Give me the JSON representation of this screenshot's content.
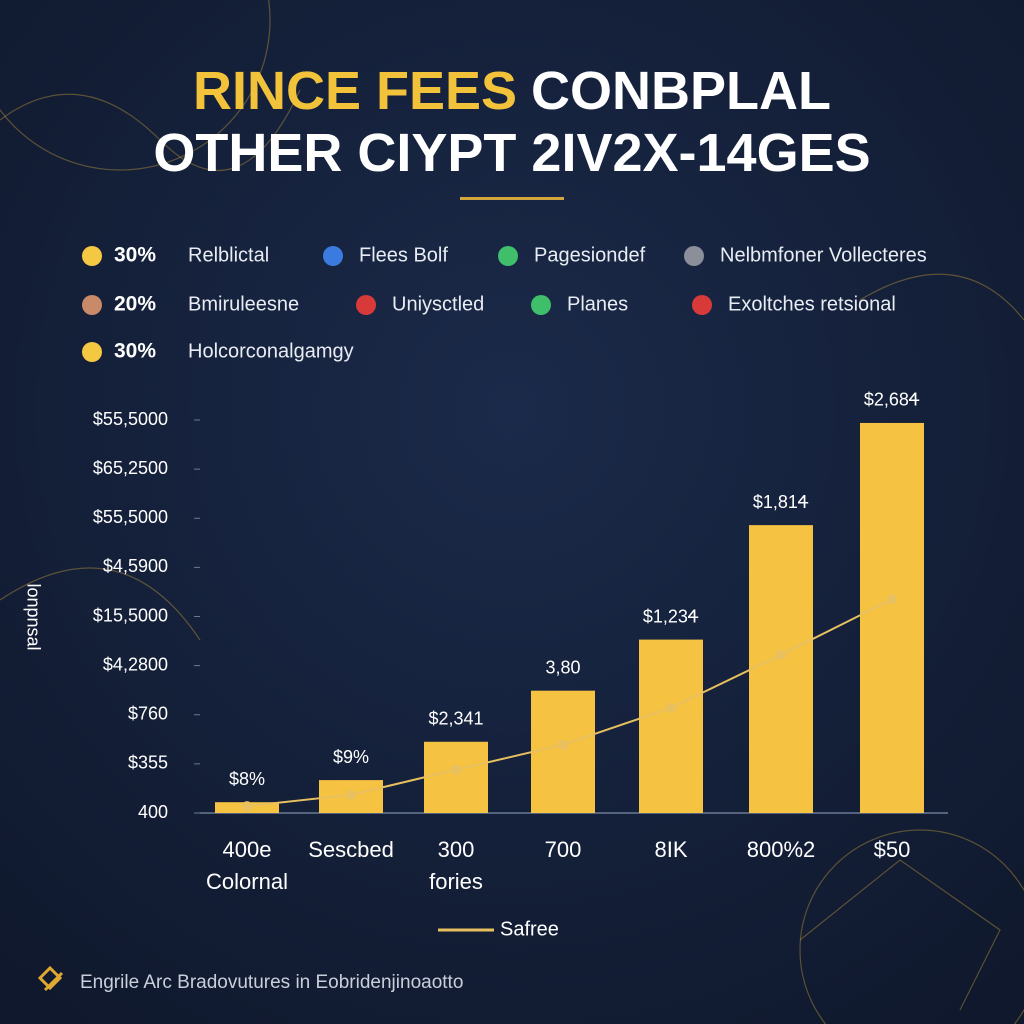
{
  "chart_data": {
    "type": "bar",
    "title_lines": [
      [
        {
          "text": "RINCE FEES",
          "color": "#f2c23a"
        },
        {
          "text": "CONBPLAL",
          "color": "#ffffff"
        }
      ],
      [
        {
          "text": "OTHER CIYPT 2IV2X-14GES",
          "color": "#ffffff"
        }
      ]
    ],
    "legend": [
      {
        "percent": "30%",
        "label": "Relblictal",
        "color": "#f5c842"
      },
      {
        "label": "Flees Bolf",
        "color": "#3b7be0"
      },
      {
        "label": "Pagesiondef",
        "color": "#3fbf6a"
      },
      {
        "label": "Nelbmfoner Vollecteres",
        "color": "#8a8f99"
      },
      {
        "percent": "20%",
        "label": "Bmiruleesne",
        "color": "#c98a6a"
      },
      {
        "label": "Uniysctled",
        "color": "#d83a3a"
      },
      {
        "label": "Planes",
        "color": "#3fbf6a"
      },
      {
        "label": "Exoltches retsional",
        "color": "#d83a3a"
      },
      {
        "percent": "30%",
        "label": "Holcorconalgamgy",
        "color": "#f5c842"
      }
    ],
    "y_label": "lonpnsal",
    "categories": [
      "400e Colornal",
      "Sescbed",
      "300 fories",
      "700",
      "8IK",
      "800%2",
      "$50"
    ],
    "values": [
      0.22,
      0.67,
      1.45,
      2.49,
      3.53,
      5.86,
      7.94
    ],
    "value_labels": [
      "$8%",
      "$9%",
      "$2,341",
      "3,80",
      "$1,23Ꮞ",
      "$1,81Ꮞ",
      "$2,68Ꮞ"
    ],
    "color": "#f5c242",
    "ylim": [
      0,
      8
    ],
    "yticks": [
      {
        "value": 0,
        "label": "400"
      },
      {
        "value": 1,
        "label": "$355"
      },
      {
        "value": 2,
        "label": "$760"
      },
      {
        "value": 3,
        "label": "$4,2800"
      },
      {
        "value": 4,
        "label": "$15,5000"
      },
      {
        "value": 5,
        "label": "$4,5900"
      },
      {
        "value": 6,
        "label": "$55,5000"
      },
      {
        "value": 7,
        "label": "$65,2500"
      },
      {
        "value": 8,
        "label": "$55,5000"
      }
    ],
    "line_series": {
      "name": "Safree",
      "color": "#e8c060",
      "values": [
        0.14,
        0.37,
        0.88,
        1.39,
        2.14,
        3.22,
        4.35
      ]
    },
    "footer": "Engrile Arc Bradovutures in Eobridenjinoaotto"
  }
}
